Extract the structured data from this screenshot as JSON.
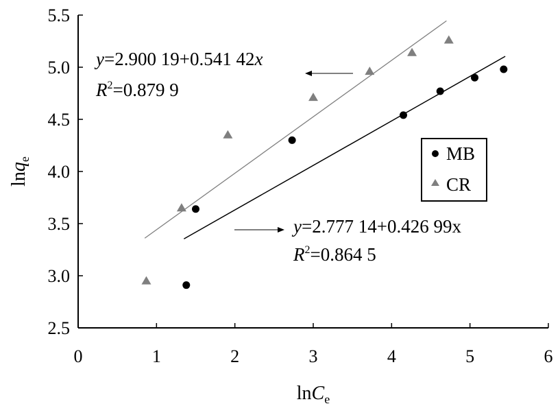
{
  "chart_data": {
    "type": "scatter",
    "xlabel": {
      "main": "ln",
      "var": "C",
      "sub": "e"
    },
    "ylabel": {
      "main": "ln",
      "var": "q",
      "sub": "e"
    },
    "xlim": [
      0,
      6
    ],
    "ylim": [
      2.5,
      5.5
    ],
    "x_ticks": [
      "0",
      "1",
      "2",
      "3",
      "4",
      "5",
      "6"
    ],
    "y_ticks": [
      "2.5",
      "3.0",
      "3.5",
      "4.0",
      "4.5",
      "5.0",
      "5.5"
    ],
    "grid": false,
    "legend_position": "right-middle",
    "series": [
      {
        "name": "MB",
        "marker": "circle",
        "color": "#000000",
        "x": [
          1.38,
          1.5,
          2.73,
          4.15,
          4.62,
          5.06,
          5.43
        ],
        "y": [
          2.91,
          3.64,
          4.3,
          4.54,
          4.77,
          4.9,
          4.98
        ],
        "fit": {
          "intercept": 2.77714,
          "slope": 0.42699,
          "x_range": [
            1.35,
            5.45
          ],
          "line_color": "#000000",
          "equation": {
            "y": "y",
            "eq": "=2.777 14+0.426 99x"
          },
          "r2": {
            "r": "R",
            "sup": "2",
            "eq": "=0.864 5"
          }
        }
      },
      {
        "name": "CR",
        "marker": "triangle",
        "color": "#7f7f7f",
        "x": [
          0.87,
          1.32,
          1.91,
          3.0,
          3.72,
          4.26,
          4.73
        ],
        "y": [
          2.95,
          3.65,
          4.35,
          4.71,
          4.96,
          5.14,
          5.26
        ],
        "fit": {
          "intercept": 2.90019,
          "slope": 0.54142,
          "x_range": [
            0.85,
            4.7
          ],
          "line_color": "#808080",
          "equation": {
            "y": "y",
            "eq": "=2.900 19+0.541 42",
            "x": "x"
          },
          "r2": {
            "r": "R",
            "sup": "2",
            "eq": "=0.879 9"
          }
        }
      }
    ]
  }
}
